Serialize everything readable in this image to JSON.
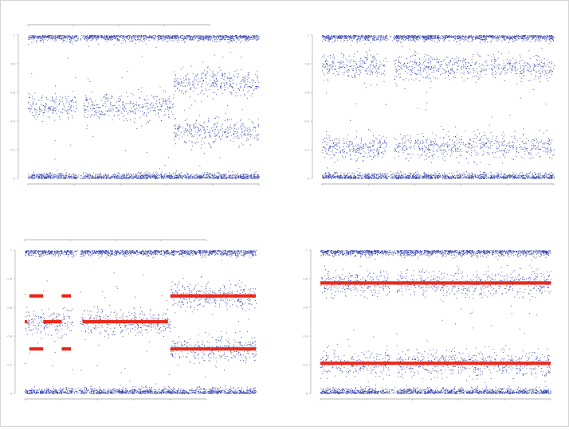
{
  "chart_data": [
    {
      "type": "scatter",
      "position": "top-left",
      "ylim": [
        0,
        1
      ],
      "ytick_labels": [
        "0",
        "0.2",
        "0.4",
        "0.6",
        "0.8",
        "1"
      ],
      "point_color": "#2b3ba8",
      "segments": [
        {
          "x": [
            0.0,
            0.07
          ],
          "bands": [
            0.0,
            0.5,
            1.0
          ]
        },
        {
          "x": [
            0.07,
            0.21
          ],
          "bands": [
            0.0,
            0.5,
            1.0
          ]
        },
        {
          "x": [
            0.24,
            0.63
          ],
          "bands": [
            0.0,
            0.5,
            1.0
          ]
        },
        {
          "x": [
            0.63,
            1.0
          ],
          "bands": [
            0.0,
            0.33,
            0.67,
            1.0
          ]
        }
      ],
      "gaps_x": [
        [
          0.21,
          0.24
        ]
      ],
      "segmentation_lines": []
    },
    {
      "type": "scatter",
      "position": "top-right",
      "ylim": [
        0,
        1
      ],
      "ytick_labels": [
        "0",
        "0.2",
        "0.4",
        "0.6",
        "0.8",
        "1"
      ],
      "point_color": "#2b3ba8",
      "segments": [
        {
          "x": [
            0.0,
            1.0
          ],
          "bands": [
            0.0,
            0.22,
            0.78,
            1.0
          ]
        }
      ],
      "gaps_x": [
        [
          0.28,
          0.31
        ]
      ],
      "segmentation_lines": []
    },
    {
      "type": "scatter",
      "position": "bottom-left",
      "ylim": [
        0,
        1
      ],
      "ytick_labels": [
        "0",
        "0.2",
        "0.4",
        "0.6",
        "0.8",
        "1"
      ],
      "point_color": "#2b3ba8",
      "line_color": "#e8291c",
      "segments": [
        {
          "x": [
            0.0,
            0.07
          ],
          "bands": [
            0.0,
            0.5,
            1.0
          ]
        },
        {
          "x": [
            0.07,
            0.21
          ],
          "bands": [
            0.0,
            0.5,
            1.0
          ]
        },
        {
          "x": [
            0.24,
            0.63
          ],
          "bands": [
            0.0,
            0.5,
            1.0
          ]
        },
        {
          "x": [
            0.63,
            1.0
          ],
          "bands": [
            0.0,
            0.31,
            0.68,
            1.0
          ]
        }
      ],
      "gaps_x": [
        [
          0.21,
          0.24
        ]
      ],
      "segmentation_lines": [
        {
          "x": [
            0.0,
            0.01
          ],
          "y": 0.5
        },
        {
          "x": [
            0.02,
            0.08
          ],
          "y": 0.68
        },
        {
          "x": [
            0.02,
            0.08
          ],
          "y": 0.31
        },
        {
          "x": [
            0.08,
            0.16
          ],
          "y": 0.5
        },
        {
          "x": [
            0.16,
            0.2
          ],
          "y": 0.68
        },
        {
          "x": [
            0.16,
            0.2
          ],
          "y": 0.31
        },
        {
          "x": [
            0.25,
            0.62
          ],
          "y": 0.5
        },
        {
          "x": [
            0.63,
            1.0
          ],
          "y": 0.68
        },
        {
          "x": [
            0.63,
            1.0
          ],
          "y": 0.31
        }
      ]
    },
    {
      "type": "scatter",
      "position": "bottom-right",
      "ylim": [
        0,
        1
      ],
      "ytick_labels": [
        "0",
        "0.2",
        "0.4",
        "0.6",
        "0.8",
        "1"
      ],
      "point_color": "#2b3ba8",
      "line_color": "#e8291c",
      "segments": [
        {
          "x": [
            0.0,
            1.0
          ],
          "bands": [
            0.0,
            0.21,
            0.77,
            1.0
          ]
        }
      ],
      "gaps_x": [
        [
          0.3,
          0.33
        ]
      ],
      "segmentation_lines": [
        {
          "x": [
            0.0,
            1.0
          ],
          "y": 0.77
        },
        {
          "x": [
            0.0,
            1.0
          ],
          "y": 0.21
        }
      ]
    }
  ]
}
